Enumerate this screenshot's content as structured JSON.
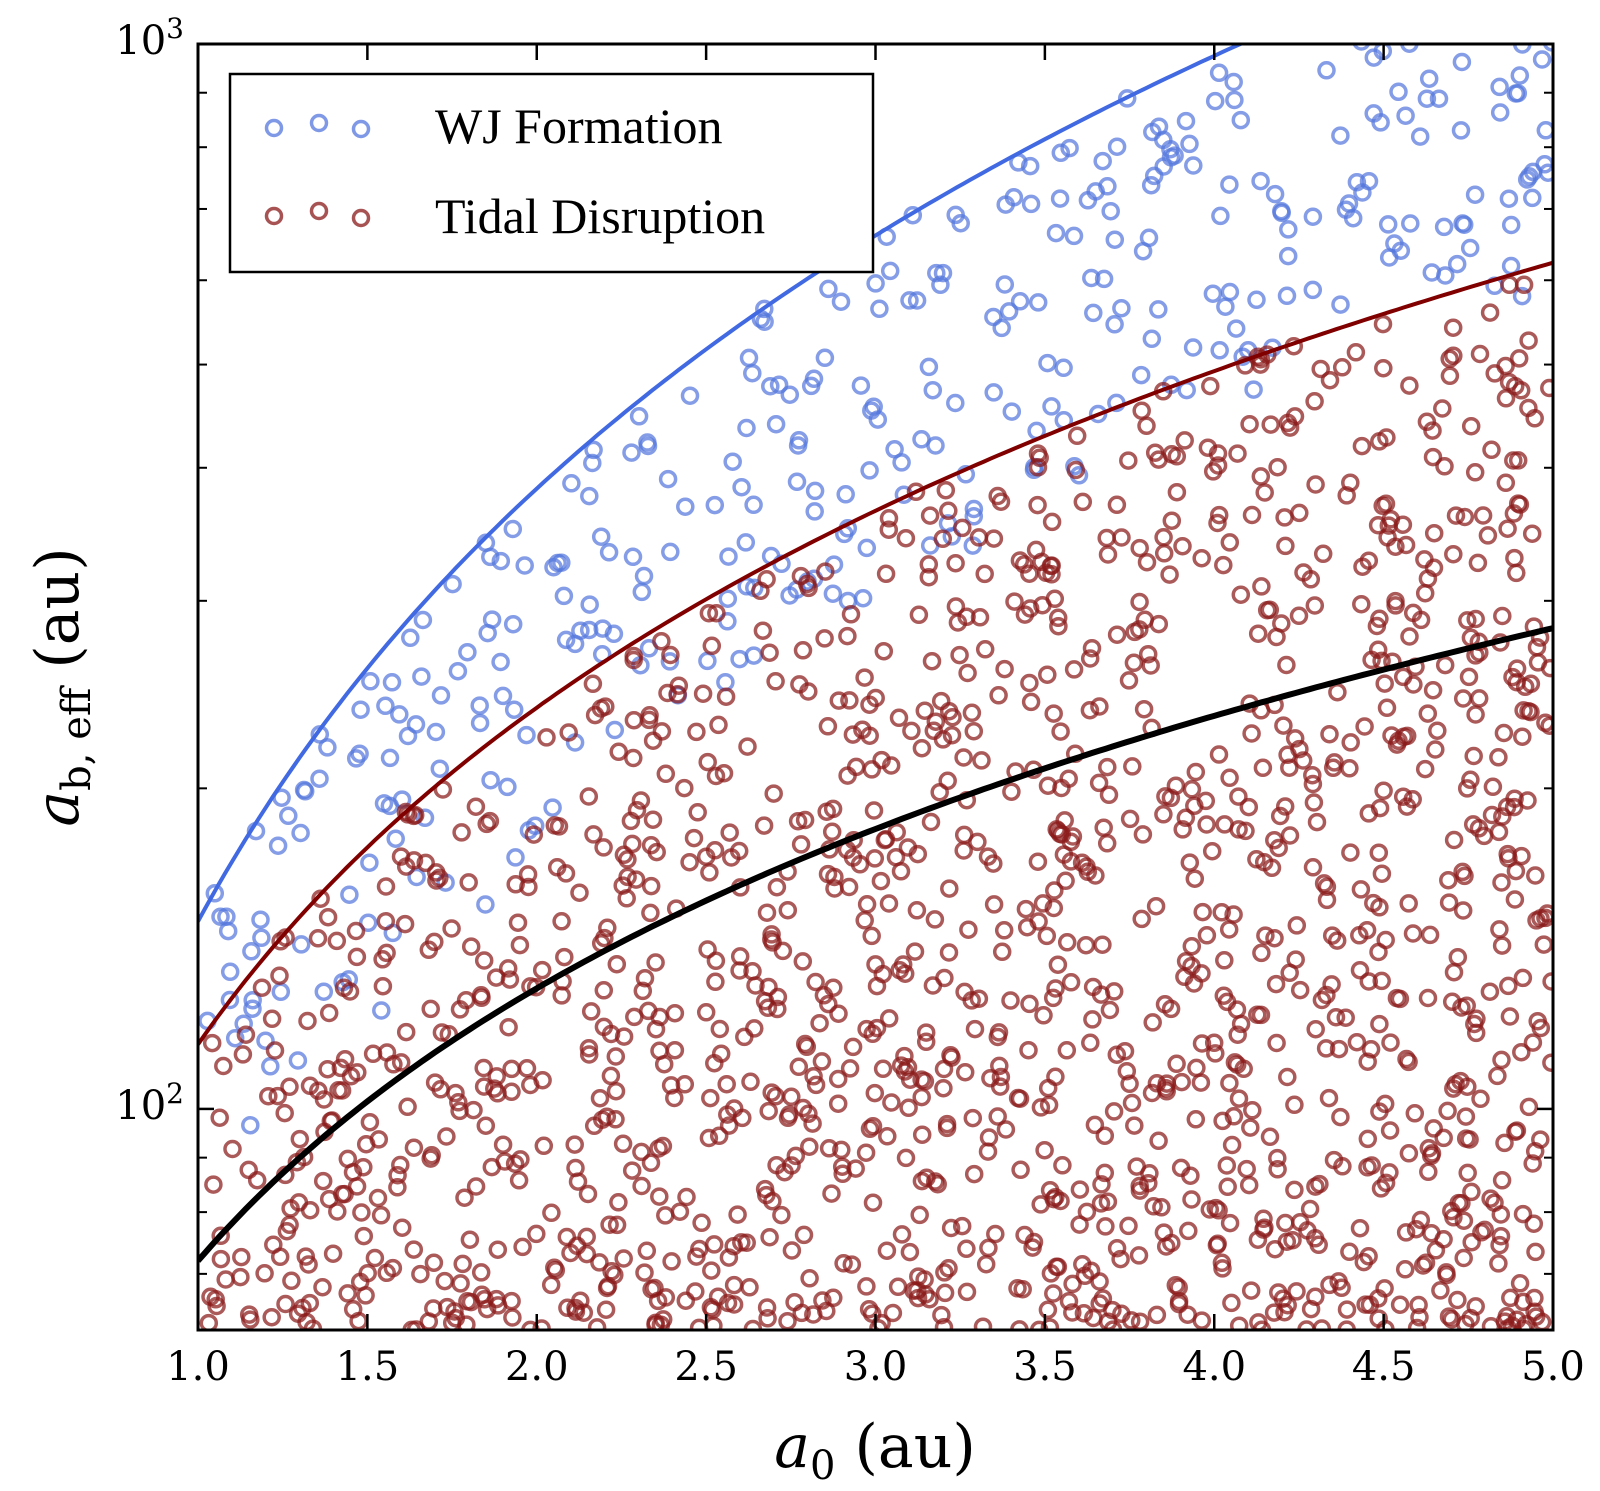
{
  "chart_data": {
    "type": "scatter",
    "title": "",
    "xlabel": {
      "italic": "a",
      "sub": "0",
      "unit": " (au)"
    },
    "ylabel": {
      "italic": "a",
      "sub": "b, eff",
      "unit": " (au)"
    },
    "xscale": "linear",
    "yscale": "log",
    "xlim": [
      1.0,
      5.0
    ],
    "ylim": [
      62,
      1000
    ],
    "x_ticks": [
      1.0,
      1.5,
      2.0,
      2.5,
      3.0,
      3.5,
      4.0,
      4.5,
      5.0
    ],
    "x_tick_labels": [
      "1.0",
      "1.5",
      "2.0",
      "2.5",
      "3.0",
      "3.5",
      "4.0",
      "4.5",
      "5.0"
    ],
    "y_major_ticks": [
      100,
      1000
    ],
    "y_tick_labels": [
      {
        "base": "10",
        "exp": "2"
      },
      {
        "base": "10",
        "exp": "3"
      }
    ],
    "y_minor_ticks": [
      70,
      80,
      90,
      200,
      300,
      400,
      500,
      600,
      700,
      800,
      900
    ],
    "grid": false,
    "legend_position": "top-left",
    "series": [
      {
        "name": "WJ Formation",
        "color": "#5577dd",
        "marker": "open-circle",
        "role": "scatter",
        "generator": {
          "n": 360,
          "seed": 7,
          "upper": "blue_curve",
          "lower_frac": 0.45
        }
      },
      {
        "name": "Tidal Disruption",
        "color": "#8b1a1a",
        "marker": "open-circle",
        "role": "scatter",
        "generator": {
          "n": 1450,
          "seed": 13,
          "upper": "red_curve",
          "ymin": 62
        }
      }
    ],
    "curves": [
      {
        "name": "blue_curve",
        "color": "#4169e1",
        "width": 4,
        "coeff": 150,
        "exponent": 1.35
      },
      {
        "name": "red_curve",
        "color": "#800000",
        "width": 4,
        "coeff": 115,
        "exponent": 1.05
      },
      {
        "name": "black_curve",
        "color": "#000000",
        "width": 6,
        "coeff": 72,
        "exponent": 0.85
      }
    ],
    "legend": [
      {
        "label": "WJ Formation",
        "color": "#5577dd"
      },
      {
        "label": "Tidal Disruption",
        "color": "#8b1a1a"
      }
    ]
  }
}
